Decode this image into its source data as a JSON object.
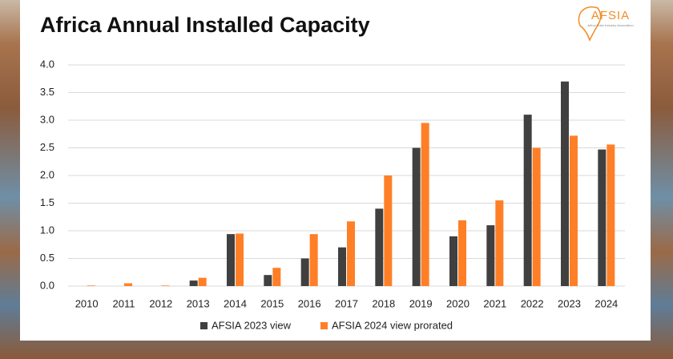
{
  "chart_data": {
    "type": "bar",
    "title": "Africa Annual Installed Capacity",
    "logo": {
      "name": "AFSIA",
      "subtitle": "Africa Solar Industry Association"
    },
    "categories": [
      "2010",
      "2011",
      "2012",
      "2013",
      "2014",
      "2015",
      "2016",
      "2017",
      "2018",
      "2019",
      "2020",
      "2021",
      "2022",
      "2023",
      "2024"
    ],
    "series": [
      {
        "name": "AFSIA 2023 view",
        "color": "#404040",
        "values": [
          0,
          0,
          0,
          0.1,
          0.94,
          0.2,
          0.5,
          0.7,
          1.4,
          2.5,
          0.9,
          1.1,
          3.1,
          3.7,
          2.47
        ]
      },
      {
        "name": "AFSIA 2024 view prorated",
        "color": "#ff7f27",
        "values": [
          0.01,
          0.05,
          0.01,
          0.15,
          0.95,
          0.33,
          0.94,
          1.17,
          2.0,
          2.95,
          1.19,
          1.55,
          2.5,
          2.72,
          2.56
        ]
      }
    ],
    "ylim": [
      0,
      4
    ],
    "yticks": [
      {
        "value": 0,
        "label": "0.0"
      },
      0.5,
      {
        "value": 1,
        "label": "1.0"
      },
      1.5,
      {
        "value": 2,
        "label": "2.0"
      },
      2.5,
      {
        "value": 3,
        "label": "3.0"
      },
      3.5,
      {
        "value": 4,
        "label": "4.0"
      }
    ],
    "grid": true,
    "legend": "bottom"
  }
}
